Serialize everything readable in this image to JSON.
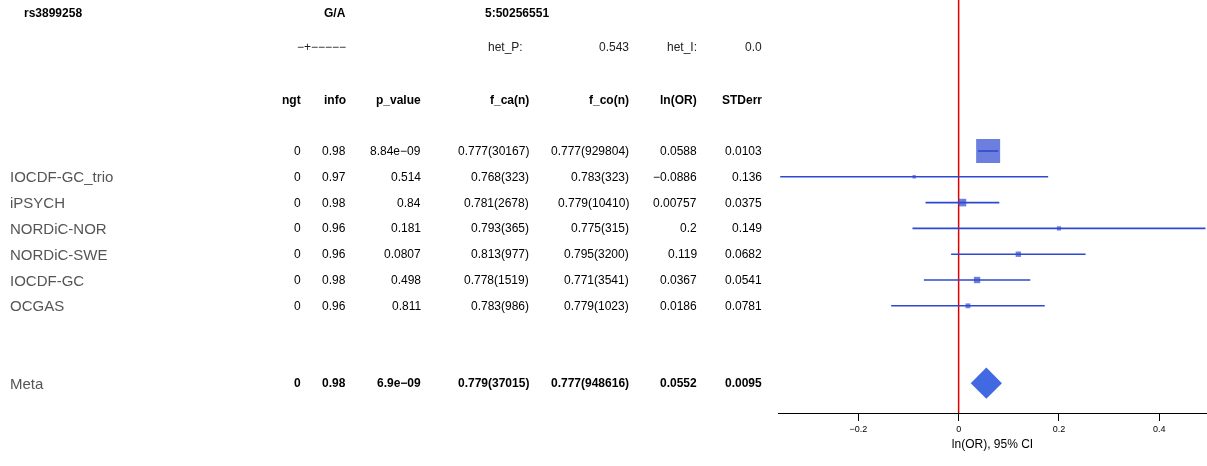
{
  "chart_data": [
    {
      "type": "other",
      "title": "rs3899258",
      "annotations": [
        "G/A",
        "5:50256551",
        "−+−−−−−",
        "het_P:",
        "0.543",
        "het_I:",
        "0.0",
        "ngt",
        "info",
        "p_value",
        "f_ca(n)",
        "f_co(n)",
        "ln(OR)",
        "STDerr",
        "0",
        "0.98",
        "8.84e−09",
        "0.777(30167)",
        "0.777(929804)",
        "0.0588",
        "0.0103",
        "0",
        "0.97",
        "0.514",
        "0.768(323)",
        "0.783(323)",
        "−0.0886",
        "0.136",
        "0",
        "0.98",
        "0.84",
        "0.781(2678)",
        "0.779(10410)",
        "0.00757",
        "0.0375",
        "0",
        "0.96",
        "0.181",
        "0.793(365)",
        "0.775(315)",
        "0.2",
        "0.149",
        "0",
        "0.96",
        "0.0807",
        "0.813(977)",
        "0.795(3200)",
        "0.119",
        "0.0682",
        "0",
        "0.98",
        "0.498",
        "0.778(1519)",
        "0.771(3541)",
        "0.0367",
        "0.0541",
        "0",
        "0.96",
        "0.811",
        "0.783(986)",
        "0.779(1023)",
        "0.0186",
        "0.0781",
        "0",
        "0.98",
        "6.9e−09",
        "0.779(37015)",
        "0.777(948616)",
        "0.0552",
        "0.0095"
      ]
    },
    {
      "type": "scatter",
      "orientation": "horizontal",
      "xlabel": "ln(OR), 95% CI",
      "categories": [
        null,
        "IOCDF-GC_trio",
        "iPSYCH",
        "NORDiC-NOR",
        "NORDiC-SWE",
        "IOCDF-GC",
        "OCGAS",
        null,
        null,
        "Meta"
      ],
      "series": [
        {
          "type": "bubble",
          "marker": "square",
          "color": "#2f48d0",
          "values": [
            0.0588,
            -0.0886,
            0.00757,
            0.2,
            0.119,
            0.0367,
            0.0186,
            null,
            null,
            null
          ],
          "errors": [
            0.0202,
            0.267,
            0.0735,
            0.292,
            0.134,
            0.106,
            0.153,
            null,
            null,
            null
          ],
          "sizes": [
            1,
            0.02,
            0.1,
            0.03,
            0.05,
            0.07,
            0.04,
            null,
            null,
            null
          ]
        },
        {
          "marker": "diamond",
          "color": "#4169e1",
          "values": [
            null,
            null,
            null,
            null,
            null,
            null,
            null,
            null,
            null,
            0.0552
          ]
        }
      ],
      "xlim": [
        -0.36,
        0.495
      ],
      "xticks": [
        {
          "value": -0.2,
          "label": "−0.2"
        },
        0,
        0.2,
        0.4
      ],
      "ref_lines": [
        {
          "axis": "x",
          "value": 0,
          "color": "#e00000"
        }
      ],
      "tick_labels": "x"
    }
  ]
}
